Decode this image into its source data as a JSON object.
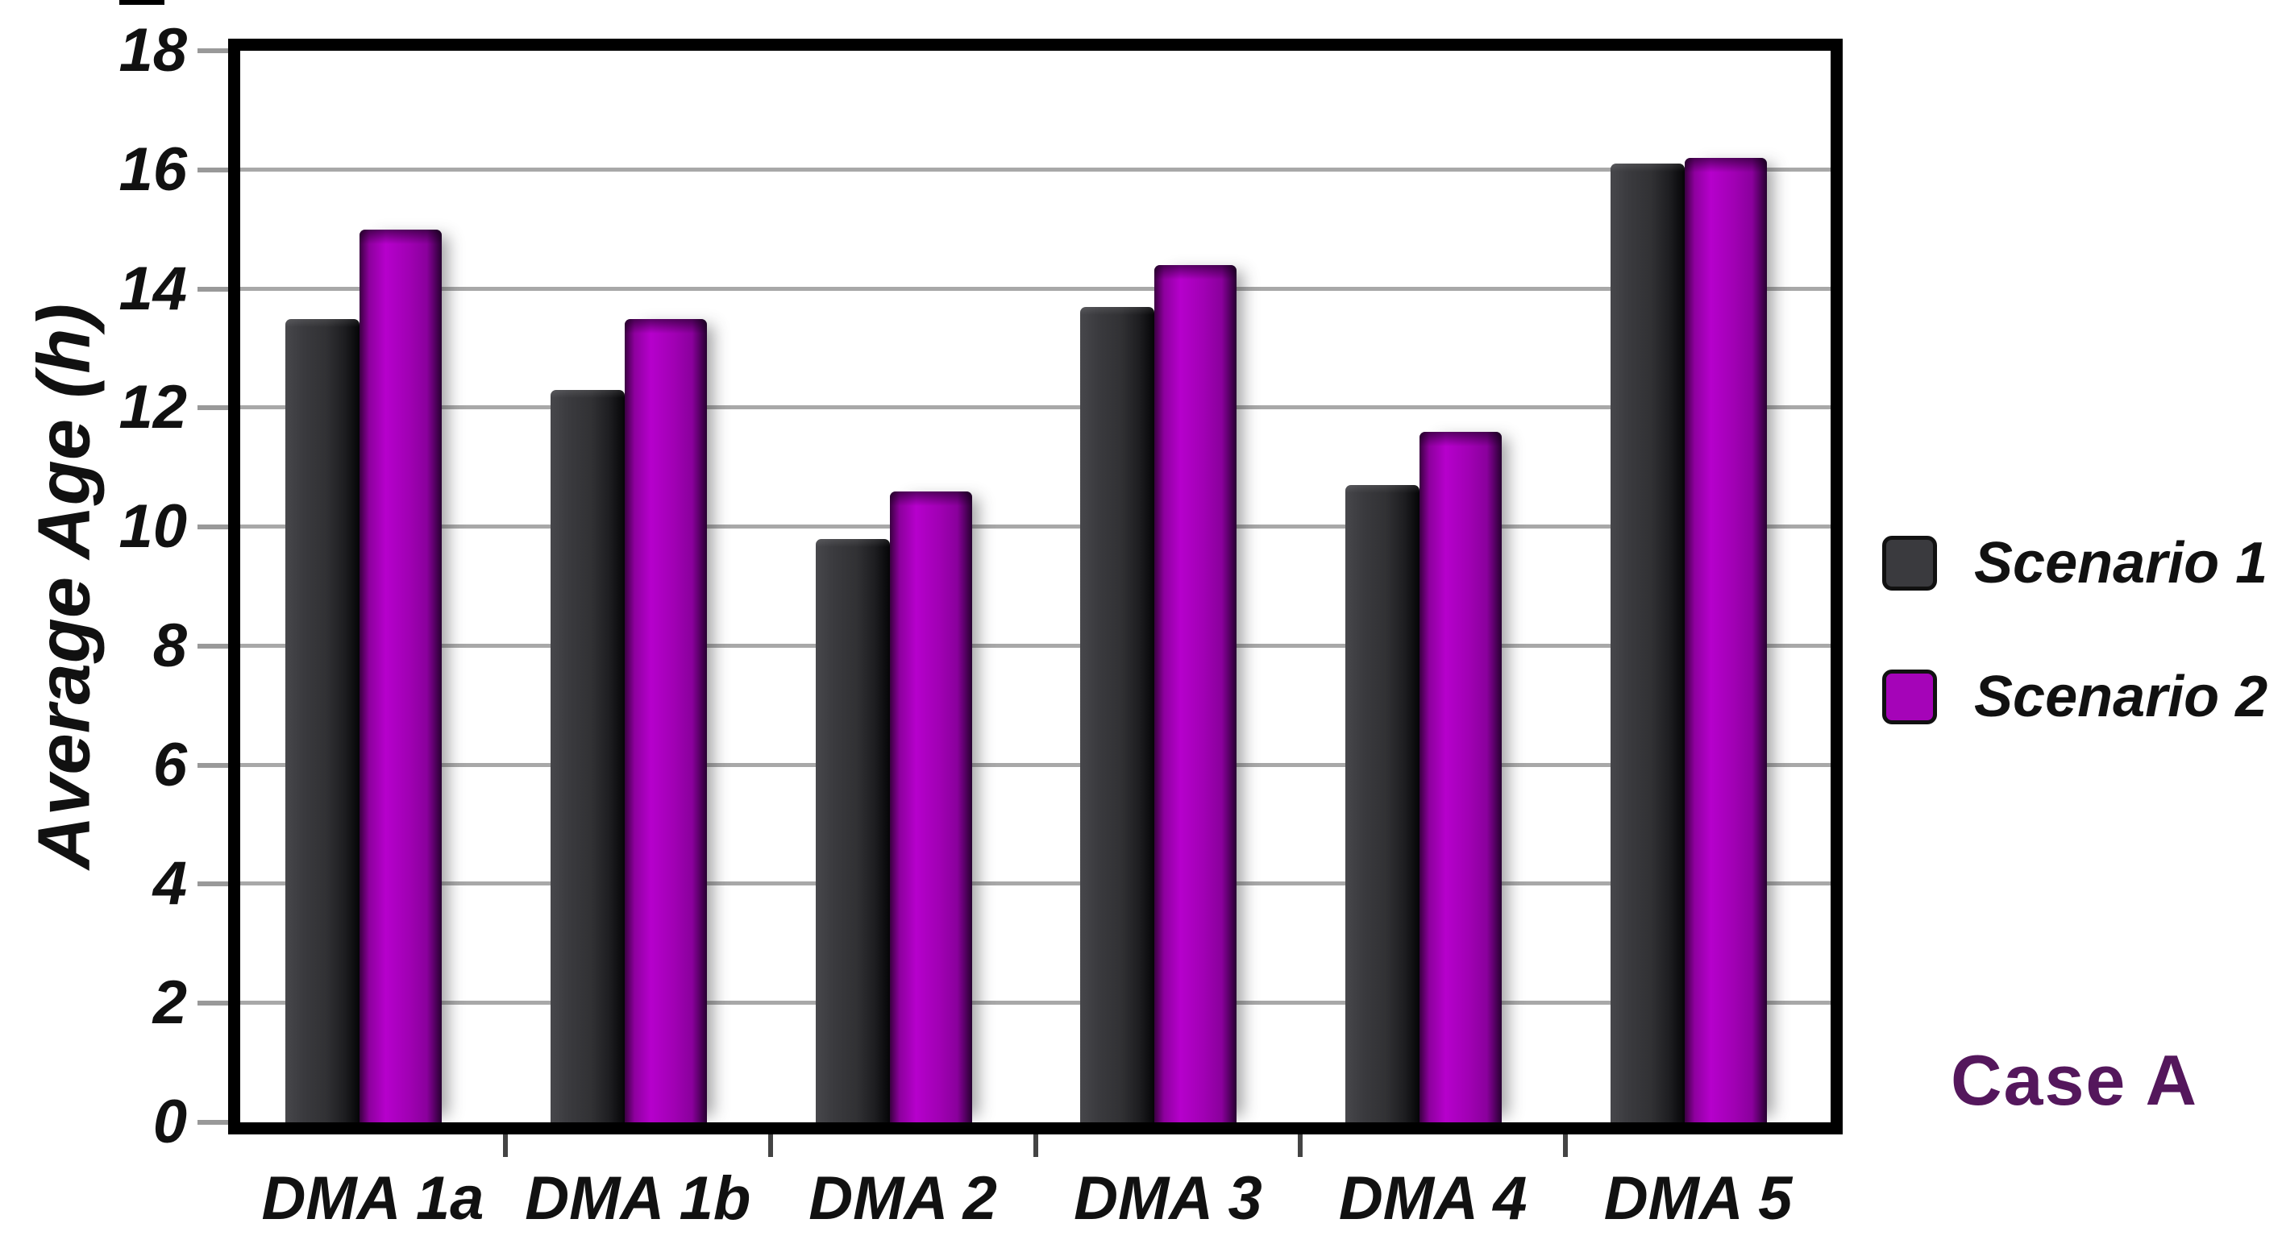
{
  "chart_data": {
    "type": "bar",
    "title": "",
    "categories": [
      "DMA 1a",
      "DMA 1b",
      "DMA 2",
      "DMA 3",
      "DMA 4",
      "DMA 5"
    ],
    "series": [
      {
        "name": "Scenario 1",
        "color": "#343438",
        "values": [
          13.5,
          12.3,
          9.8,
          13.7,
          10.7,
          16.1
        ]
      },
      {
        "name": "Scenario 2",
        "color": "#A400B6",
        "values": [
          15.0,
          13.5,
          10.6,
          14.4,
          11.6,
          16.2
        ]
      }
    ],
    "xlabel": "",
    "ylabel": "Average Age (h)",
    "ylim": [
      0,
      18
    ],
    "ytick_step": 2,
    "ytick_labels": [
      "0",
      "2",
      "4",
      "6",
      "8",
      "10",
      "12",
      "14",
      "16",
      "18"
    ],
    "grid": "horizontal-major-only",
    "gridline_color": "#a8a8a8",
    "plot_border_color": "#000000",
    "legend_position": "right",
    "annotation": {
      "text": "Case A",
      "color": "#54175C"
    }
  }
}
